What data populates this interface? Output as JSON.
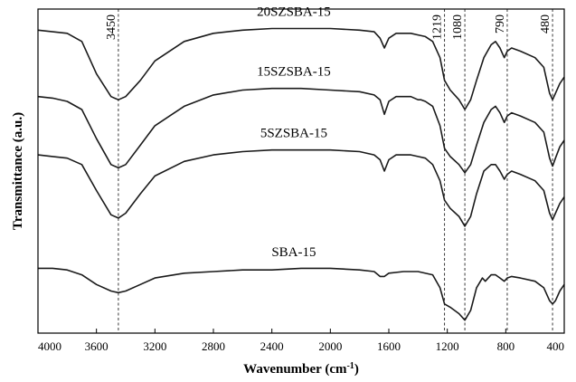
{
  "chart_data": {
    "type": "line",
    "xlabel": "Wavenumber (cm",
    "xlabel_sup": "-1",
    "xlabel_end": ")",
    "ylabel": "Transmittance (a.u.)",
    "xlim": [
      4000,
      400
    ],
    "x_reversed": true,
    "yticks_shown": false,
    "grid": false,
    "xticks": [
      4000,
      3600,
      3200,
      2800,
      2400,
      2000,
      1600,
      1200,
      800,
      400
    ],
    "reference_lines": [
      {
        "x": 3450,
        "label": "3450"
      },
      {
        "x": 1219,
        "label": "1219"
      },
      {
        "x": 1080,
        "label": "1080"
      },
      {
        "x": 790,
        "label": "790"
      },
      {
        "x": 480,
        "label": "480"
      }
    ],
    "series": [
      {
        "name": "20SZSBA-15",
        "points": [
          [
            4000,
            0.935
          ],
          [
            3900,
            0.93
          ],
          [
            3800,
            0.925
          ],
          [
            3700,
            0.9
          ],
          [
            3600,
            0.8
          ],
          [
            3500,
            0.73
          ],
          [
            3450,
            0.72
          ],
          [
            3400,
            0.73
          ],
          [
            3300,
            0.78
          ],
          [
            3200,
            0.84
          ],
          [
            3000,
            0.9
          ],
          [
            2800,
            0.925
          ],
          [
            2600,
            0.935
          ],
          [
            2400,
            0.94
          ],
          [
            2200,
            0.94
          ],
          [
            2000,
            0.94
          ],
          [
            1800,
            0.935
          ],
          [
            1700,
            0.93
          ],
          [
            1660,
            0.91
          ],
          [
            1630,
            0.88
          ],
          [
            1600,
            0.91
          ],
          [
            1550,
            0.925
          ],
          [
            1450,
            0.925
          ],
          [
            1400,
            0.92
          ],
          [
            1350,
            0.915
          ],
          [
            1300,
            0.9
          ],
          [
            1250,
            0.85
          ],
          [
            1219,
            0.78
          ],
          [
            1180,
            0.75
          ],
          [
            1120,
            0.72
          ],
          [
            1080,
            0.69
          ],
          [
            1040,
            0.72
          ],
          [
            1000,
            0.78
          ],
          [
            950,
            0.85
          ],
          [
            900,
            0.89
          ],
          [
            870,
            0.9
          ],
          [
            840,
            0.88
          ],
          [
            810,
            0.85
          ],
          [
            790,
            0.87
          ],
          [
            760,
            0.88
          ],
          [
            700,
            0.87
          ],
          [
            600,
            0.85
          ],
          [
            540,
            0.82
          ],
          [
            500,
            0.74
          ],
          [
            480,
            0.72
          ],
          [
            460,
            0.74
          ],
          [
            430,
            0.77
          ],
          [
            400,
            0.79
          ]
        ]
      },
      {
        "name": "15SZSBA-15",
        "points": [
          [
            4000,
            0.73
          ],
          [
            3900,
            0.725
          ],
          [
            3800,
            0.715
          ],
          [
            3700,
            0.69
          ],
          [
            3600,
            0.6
          ],
          [
            3500,
            0.52
          ],
          [
            3450,
            0.51
          ],
          [
            3400,
            0.52
          ],
          [
            3300,
            0.58
          ],
          [
            3200,
            0.64
          ],
          [
            3000,
            0.7
          ],
          [
            2800,
            0.735
          ],
          [
            2600,
            0.75
          ],
          [
            2400,
            0.755
          ],
          [
            2200,
            0.755
          ],
          [
            2000,
            0.75
          ],
          [
            1800,
            0.745
          ],
          [
            1700,
            0.735
          ],
          [
            1660,
            0.72
          ],
          [
            1630,
            0.675
          ],
          [
            1600,
            0.715
          ],
          [
            1550,
            0.73
          ],
          [
            1450,
            0.73
          ],
          [
            1400,
            0.72
          ],
          [
            1380,
            0.72
          ],
          [
            1350,
            0.715
          ],
          [
            1300,
            0.7
          ],
          [
            1250,
            0.64
          ],
          [
            1219,
            0.57
          ],
          [
            1180,
            0.545
          ],
          [
            1120,
            0.52
          ],
          [
            1080,
            0.495
          ],
          [
            1040,
            0.52
          ],
          [
            1000,
            0.58
          ],
          [
            950,
            0.65
          ],
          [
            900,
            0.69
          ],
          [
            870,
            0.7
          ],
          [
            840,
            0.68
          ],
          [
            810,
            0.65
          ],
          [
            790,
            0.67
          ],
          [
            760,
            0.68
          ],
          [
            700,
            0.67
          ],
          [
            600,
            0.65
          ],
          [
            540,
            0.62
          ],
          [
            500,
            0.54
          ],
          [
            480,
            0.515
          ],
          [
            460,
            0.54
          ],
          [
            430,
            0.575
          ],
          [
            400,
            0.595
          ]
        ]
      },
      {
        "name": "5SZSBA-15",
        "points": [
          [
            4000,
            0.55
          ],
          [
            3900,
            0.545
          ],
          [
            3800,
            0.54
          ],
          [
            3700,
            0.52
          ],
          [
            3600,
            0.44
          ],
          [
            3500,
            0.365
          ],
          [
            3450,
            0.355
          ],
          [
            3400,
            0.37
          ],
          [
            3300,
            0.43
          ],
          [
            3200,
            0.485
          ],
          [
            3000,
            0.53
          ],
          [
            2800,
            0.55
          ],
          [
            2600,
            0.56
          ],
          [
            2400,
            0.565
          ],
          [
            2200,
            0.565
          ],
          [
            2000,
            0.565
          ],
          [
            1800,
            0.56
          ],
          [
            1700,
            0.55
          ],
          [
            1660,
            0.535
          ],
          [
            1630,
            0.5
          ],
          [
            1600,
            0.535
          ],
          [
            1550,
            0.55
          ],
          [
            1450,
            0.55
          ],
          [
            1400,
            0.545
          ],
          [
            1350,
            0.54
          ],
          [
            1300,
            0.52
          ],
          [
            1250,
            0.47
          ],
          [
            1219,
            0.41
          ],
          [
            1180,
            0.385
          ],
          [
            1120,
            0.36
          ],
          [
            1080,
            0.33
          ],
          [
            1040,
            0.36
          ],
          [
            1000,
            0.43
          ],
          [
            950,
            0.5
          ],
          [
            900,
            0.52
          ],
          [
            870,
            0.52
          ],
          [
            840,
            0.5
          ],
          [
            810,
            0.475
          ],
          [
            790,
            0.49
          ],
          [
            760,
            0.5
          ],
          [
            700,
            0.49
          ],
          [
            600,
            0.47
          ],
          [
            540,
            0.44
          ],
          [
            500,
            0.37
          ],
          [
            480,
            0.35
          ],
          [
            460,
            0.37
          ],
          [
            430,
            0.4
          ],
          [
            400,
            0.42
          ]
        ]
      },
      {
        "name": "SBA-15",
        "points": [
          [
            4000,
            0.2
          ],
          [
            3900,
            0.2
          ],
          [
            3800,
            0.195
          ],
          [
            3700,
            0.18
          ],
          [
            3600,
            0.15
          ],
          [
            3500,
            0.13
          ],
          [
            3450,
            0.125
          ],
          [
            3400,
            0.13
          ],
          [
            3300,
            0.15
          ],
          [
            3200,
            0.17
          ],
          [
            3000,
            0.185
          ],
          [
            2800,
            0.19
          ],
          [
            2600,
            0.195
          ],
          [
            2400,
            0.195
          ],
          [
            2200,
            0.2
          ],
          [
            2000,
            0.2
          ],
          [
            1800,
            0.195
          ],
          [
            1700,
            0.19
          ],
          [
            1660,
            0.175
          ],
          [
            1630,
            0.175
          ],
          [
            1600,
            0.185
          ],
          [
            1500,
            0.19
          ],
          [
            1400,
            0.19
          ],
          [
            1300,
            0.18
          ],
          [
            1250,
            0.14
          ],
          [
            1219,
            0.09
          ],
          [
            1180,
            0.08
          ],
          [
            1120,
            0.06
          ],
          [
            1080,
            0.04
          ],
          [
            1040,
            0.07
          ],
          [
            1000,
            0.14
          ],
          [
            960,
            0.17
          ],
          [
            940,
            0.16
          ],
          [
            900,
            0.18
          ],
          [
            870,
            0.18
          ],
          [
            840,
            0.17
          ],
          [
            810,
            0.16
          ],
          [
            790,
            0.17
          ],
          [
            760,
            0.175
          ],
          [
            700,
            0.17
          ],
          [
            600,
            0.16
          ],
          [
            540,
            0.14
          ],
          [
            500,
            0.1
          ],
          [
            480,
            0.09
          ],
          [
            460,
            0.1
          ],
          [
            430,
            0.13
          ],
          [
            400,
            0.15
          ]
        ]
      }
    ]
  }
}
